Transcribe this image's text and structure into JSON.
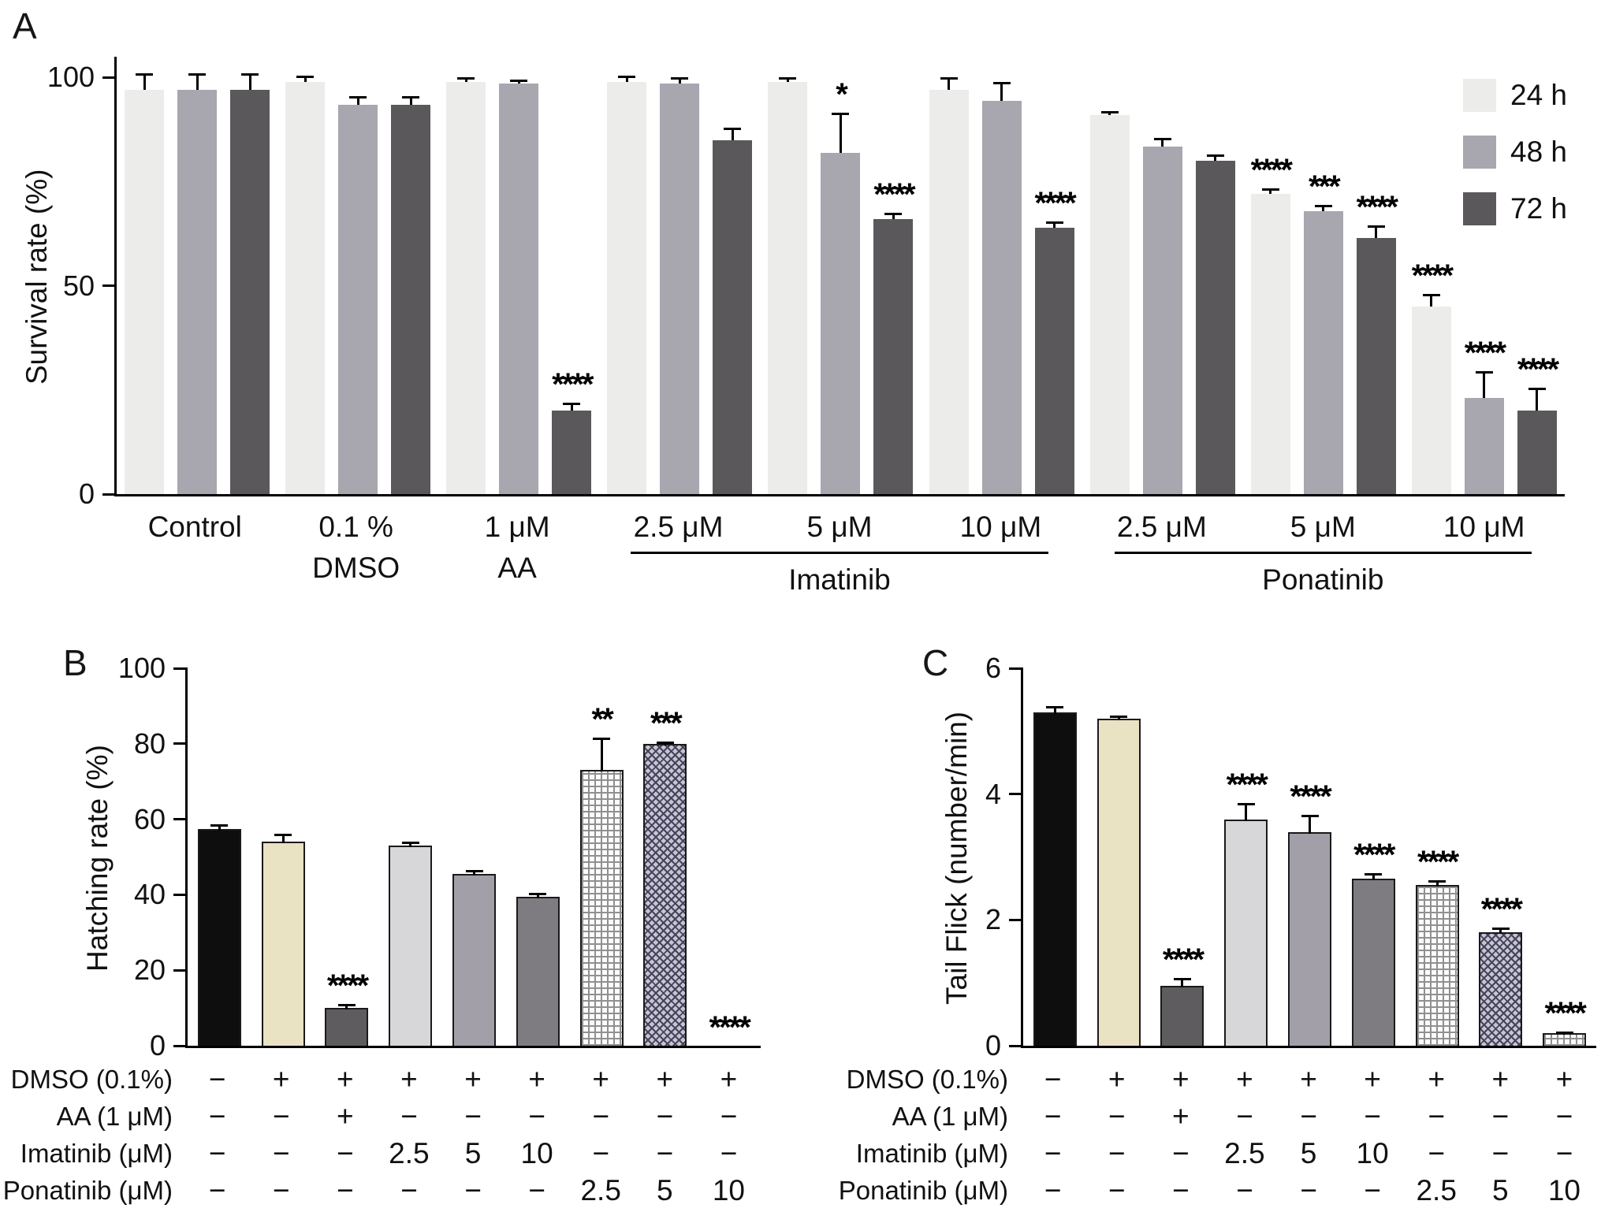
{
  "panels": {
    "a": {
      "label": "A"
    },
    "b": {
      "label": "B"
    },
    "c": {
      "label": "C"
    }
  },
  "chart_data": [
    {
      "panel": "A",
      "type": "bar",
      "title": "",
      "ylabel": "Survival rate (%)",
      "ylim": [
        0,
        105
      ],
      "yticks": [
        0,
        50,
        100
      ],
      "grid": false,
      "legend_position": "top-right",
      "categories": [
        "Control",
        "0.1 %",
        "1 μM",
        "2.5 μM",
        "5 μM",
        "10 μM",
        "2.5 μM",
        "5 μM",
        "10 μM"
      ],
      "group_annotations": [
        {
          "text": "DMSO",
          "slots": [
            1,
            1
          ],
          "line": false
        },
        {
          "text": "AA",
          "slots": [
            2,
            2
          ],
          "line": false
        },
        {
          "text": "Imatinib",
          "slots": [
            3,
            5
          ],
          "line": true
        },
        {
          "text": "Ponatinib",
          "slots": [
            6,
            8
          ],
          "line": true
        }
      ],
      "series": [
        {
          "name": "24 h",
          "color": "#ececeb",
          "values": [
            97,
            99,
            99,
            99,
            99,
            97,
            91,
            72,
            45
          ],
          "errors": [
            4,
            1.5,
            1,
            1.5,
            1,
            3,
            1,
            1.5,
            3
          ],
          "sig": [
            "",
            "",
            "",
            "",
            "",
            "",
            "",
            "****",
            "****"
          ]
        },
        {
          "name": "48 h",
          "color": "#a8a6ae",
          "values": [
            97,
            93.5,
            98.5,
            98.5,
            82,
            94.5,
            83.5,
            68,
            23
          ],
          "errors": [
            4,
            2,
            1,
            1.5,
            9.5,
            4.5,
            2,
            1.5,
            6.5
          ],
          "sig": [
            "",
            "",
            "",
            "",
            "*",
            "",
            "",
            "***",
            "****"
          ]
        },
        {
          "name": "72 h",
          "color": "#5a585b",
          "values": [
            97,
            93.5,
            20,
            85,
            66,
            64,
            80,
            61.5,
            20
          ],
          "errors": [
            4,
            2,
            2,
            3,
            1.5,
            1.5,
            1.5,
            3,
            5.5
          ],
          "sig": [
            "",
            "",
            "****",
            "",
            "****",
            "****",
            "",
            "****",
            "****"
          ]
        }
      ]
    },
    {
      "panel": "B",
      "type": "bar",
      "title": "",
      "ylabel": "Hatching rate (%)",
      "ylim": [
        0,
        100
      ],
      "yticks": [
        0,
        20,
        40,
        60,
        80,
        100
      ],
      "grid": false,
      "values": [
        57.5,
        54,
        10,
        53,
        45.5,
        39.5,
        73,
        80,
        0
      ],
      "errors": [
        1.5,
        2.5,
        1.5,
        1.5,
        1.5,
        1.5,
        9,
        1,
        0
      ],
      "sig": [
        "",
        "",
        "****",
        "",
        "",
        "",
        "**",
        "***",
        "****"
      ],
      "bar_styles": [
        "solid-black",
        "solid-beige",
        "solid-darkgray",
        "solid-lightgray",
        "solid-midgray",
        "solid-gray",
        "pattern-grid",
        "pattern-cross",
        "pattern-grid"
      ],
      "treatments": {
        "rows": [
          {
            "label": "DMSO (0.1%)",
            "cells": [
              "−",
              "+",
              "+",
              "+",
              "+",
              "+",
              "+",
              "+",
              "+"
            ]
          },
          {
            "label": "AA (1 μM)",
            "cells": [
              "−",
              "−",
              "+",
              "−",
              "−",
              "−",
              "−",
              "−",
              "−"
            ]
          },
          {
            "label": "Imatinib (μM)",
            "cells": [
              "−",
              "−",
              "−",
              "2.5",
              "5",
              "10",
              "−",
              "−",
              "−"
            ]
          },
          {
            "label": "Ponatinib (μM)",
            "cells": [
              "−",
              "−",
              "−",
              "−",
              "−",
              "−",
              "2.5",
              "5",
              "10"
            ]
          }
        ]
      }
    },
    {
      "panel": "C",
      "type": "bar",
      "title": "",
      "ylabel": "Tail Flick (number/min)",
      "ylim": [
        0,
        6
      ],
      "yticks": [
        0,
        2,
        4,
        6
      ],
      "grid": false,
      "values": [
        5.3,
        5.2,
        0.95,
        3.6,
        3.4,
        2.65,
        2.55,
        1.8,
        0.2
      ],
      "errors": [
        0.12,
        0.08,
        0.15,
        0.28,
        0.3,
        0.12,
        0.1,
        0.1,
        0.05
      ],
      "sig": [
        "",
        "",
        "****",
        "****",
        "****",
        "****",
        "****",
        "****",
        "****"
      ],
      "bar_styles": [
        "solid-black",
        "solid-beige",
        "solid-darkgray",
        "solid-lightgray",
        "solid-midgray",
        "solid-gray",
        "pattern-grid",
        "pattern-cross",
        "pattern-grid"
      ],
      "treatments": {
        "rows": [
          {
            "label": "DMSO (0.1%)",
            "cells": [
              "−",
              "+",
              "+",
              "+",
              "+",
              "+",
              "+",
              "+",
              "+"
            ]
          },
          {
            "label": "AA (1 μM)",
            "cells": [
              "−",
              "−",
              "+",
              "−",
              "−",
              "−",
              "−",
              "−",
              "−"
            ]
          },
          {
            "label": "Imatinib (μM)",
            "cells": [
              "−",
              "−",
              "−",
              "2.5",
              "5",
              "10",
              "−",
              "−",
              "−"
            ]
          },
          {
            "label": "Ponatinib (μM)",
            "cells": [
              "−",
              "−",
              "−",
              "−",
              "−",
              "−",
              "2.5",
              "5",
              "10"
            ]
          }
        ]
      }
    }
  ]
}
